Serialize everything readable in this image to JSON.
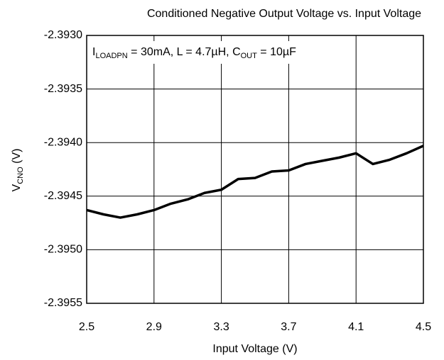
{
  "chart_data": {
    "type": "line",
    "title": "Conditioned Negative Output Voltage vs. Input Voltage",
    "annotation": [
      "I",
      "LOADPN",
      " = 30mA, L = 4.7µH, C",
      "OUT",
      " = 10µF"
    ],
    "xlabel": "Input Voltage (V)",
    "ylabel": [
      "V",
      "CNO",
      " (V)"
    ],
    "x": [
      2.5,
      2.6,
      2.7,
      2.8,
      2.9,
      3.0,
      3.1,
      3.2,
      3.3,
      3.4,
      3.5,
      3.6,
      3.7,
      3.8,
      3.9,
      4.0,
      4.1,
      4.2,
      4.3,
      4.4,
      4.5
    ],
    "series": [
      {
        "color": "#000000",
        "values": [
          -2.39463,
          -2.39467,
          -2.3947,
          -2.39467,
          -2.39463,
          -2.39457,
          -2.39453,
          -2.39447,
          -2.39444,
          -2.39434,
          -2.39433,
          -2.39427,
          -2.39426,
          -2.3942,
          -2.39417,
          -2.39414,
          -2.3941,
          -2.3942,
          -2.39416,
          -2.3941,
          -2.39403
        ]
      }
    ],
    "xlim": [
      2.5,
      4.5
    ],
    "xticks": [
      2.5,
      2.9,
      3.3,
      3.7,
      4.1,
      4.5
    ],
    "ylim": [
      -2.3955,
      -2.393
    ],
    "yticks": [
      {
        "value": -2.393,
        "label": "-2.3930"
      },
      {
        "value": -2.3935,
        "label": "-2.3935"
      },
      {
        "value": -2.394,
        "label": "-2.3940"
      },
      {
        "value": -2.3945,
        "label": "-2.3945"
      },
      {
        "value": -2.395,
        "label": "-2.3950"
      },
      {
        "value": -2.3955,
        "label": "-2.3955"
      }
    ],
    "grid": true
  }
}
